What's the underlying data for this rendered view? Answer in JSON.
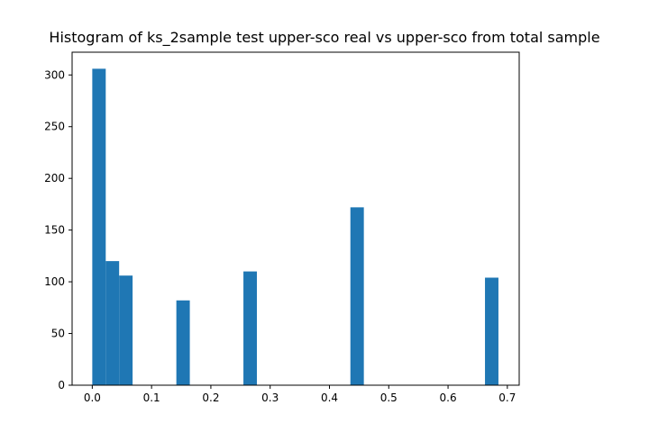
{
  "chart_data": {
    "type": "bar",
    "title": "Histogram of ks_2sample test upper-sco real vs upper-sco from total sample",
    "xlabel": "",
    "ylabel": "",
    "xlim": [
      -0.034,
      0.72
    ],
    "ylim": [
      0,
      322
    ],
    "xticks": [
      0.0,
      0.1,
      0.2,
      0.3,
      0.4,
      0.5,
      0.6,
      0.7
    ],
    "xtick_labels": [
      "0.0",
      "0.1",
      "0.2",
      "0.3",
      "0.4",
      "0.5",
      "0.6",
      "0.7"
    ],
    "yticks": [
      0,
      50,
      100,
      150,
      200,
      250,
      300
    ],
    "ytick_labels": [
      "0",
      "50",
      "100",
      "150",
      "200",
      "250",
      "300"
    ],
    "grid": false,
    "bars": [
      {
        "x0": 0.0,
        "x1": 0.0227,
        "value": 306
      },
      {
        "x0": 0.0227,
        "x1": 0.0453,
        "value": 120
      },
      {
        "x0": 0.0453,
        "x1": 0.068,
        "value": 106
      },
      {
        "x0": 0.1418,
        "x1": 0.1645,
        "value": 82
      },
      {
        "x0": 0.2549,
        "x1": 0.2776,
        "value": 110
      },
      {
        "x0": 0.4353,
        "x1": 0.458,
        "value": 172
      },
      {
        "x0": 0.6623,
        "x1": 0.685,
        "value": 104
      }
    ],
    "color": "#1f77b4"
  }
}
